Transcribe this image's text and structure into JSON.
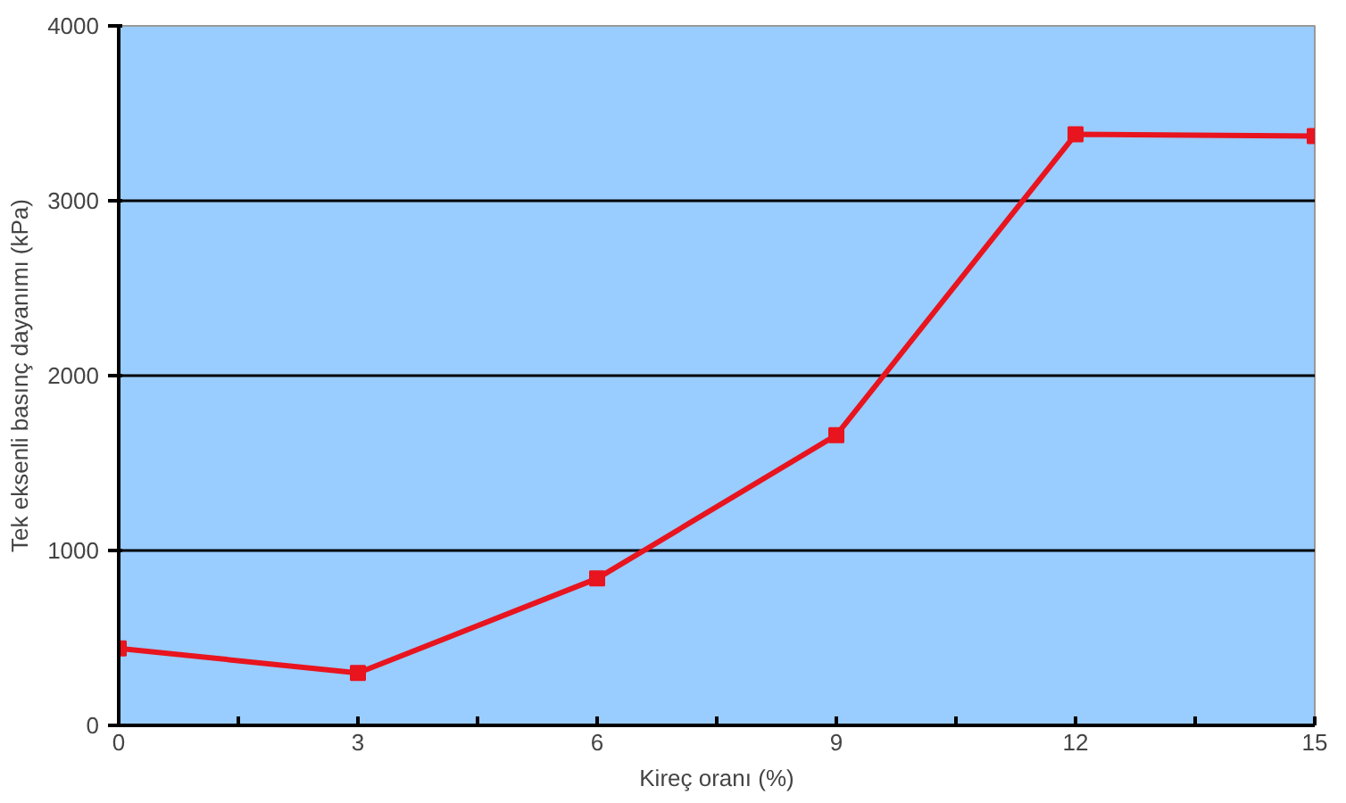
{
  "chart_data": {
    "type": "line",
    "xlabel": "Kireç oranı (%)",
    "ylabel": "Tek eksenli basınç dayanımı (kPa)",
    "x": [
      0,
      3,
      6,
      9,
      12,
      15
    ],
    "series": [
      {
        "color": "#e8141e",
        "values": [
          440,
          300,
          840,
          1660,
          3380,
          3370
        ]
      }
    ],
    "xlim": [
      0,
      15
    ],
    "ylim": [
      0,
      4000
    ],
    "xticks": [
      0,
      {
        "value": 1.5,
        "label": null
      },
      3,
      {
        "value": 4.5,
        "label": null
      },
      6,
      {
        "value": 7.5,
        "label": null
      },
      9,
      {
        "value": 10.5,
        "label": null
      },
      12,
      {
        "value": 13.5,
        "label": null
      },
      15
    ],
    "yticks": [
      0,
      1000,
      2000,
      3000,
      4000
    ],
    "grid": "y",
    "marker": "square",
    "line_style": "solid"
  }
}
